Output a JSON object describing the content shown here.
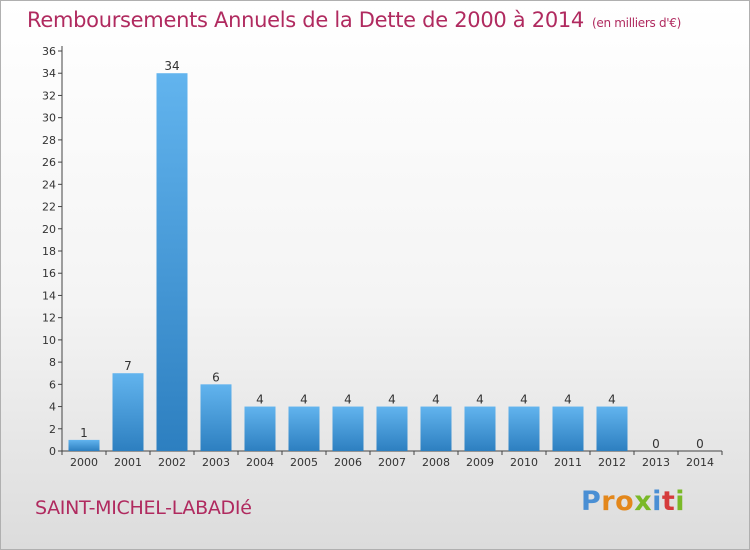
{
  "header": {
    "title": "Remboursements Annuels de la Dette de 2000 à 2014",
    "unit": "(en milliers d'€)"
  },
  "footer": {
    "commune": "SAINT-MICHEL-LABADIé",
    "logo_letters": [
      "P",
      "r",
      "o",
      "x",
      "i",
      "t",
      "i"
    ],
    "logo_colors": [
      "#4a8fd4",
      "#e3871b",
      "#e3871b",
      "#7ab928",
      "#4a8fd4",
      "#d53b3b",
      "#7ab928"
    ]
  },
  "colors": {
    "bar_top": "#62b4ee",
    "bar_bottom": "#2d7fc0",
    "text": "#b02a5f",
    "axis": "#444444"
  },
  "chart_data": {
    "type": "bar",
    "title": "Remboursements Annuels de la Dette de 2000 à 2014",
    "subtitle": "(en milliers d'€)",
    "xlabel": "",
    "ylabel": "",
    "categories": [
      "2000",
      "2001",
      "2002",
      "2003",
      "2004",
      "2005",
      "2006",
      "2007",
      "2008",
      "2009",
      "2010",
      "2011",
      "2012",
      "2013",
      "2014"
    ],
    "values": [
      1,
      7,
      34,
      6,
      4,
      4,
      4,
      4,
      4,
      4,
      4,
      4,
      4,
      0,
      0
    ],
    "ylim": [
      0,
      36
    ],
    "yticks": [
      0,
      2,
      4,
      6,
      8,
      10,
      12,
      14,
      16,
      18,
      20,
      22,
      24,
      26,
      28,
      30,
      32,
      34,
      36
    ],
    "grid": false,
    "legend": "none"
  }
}
